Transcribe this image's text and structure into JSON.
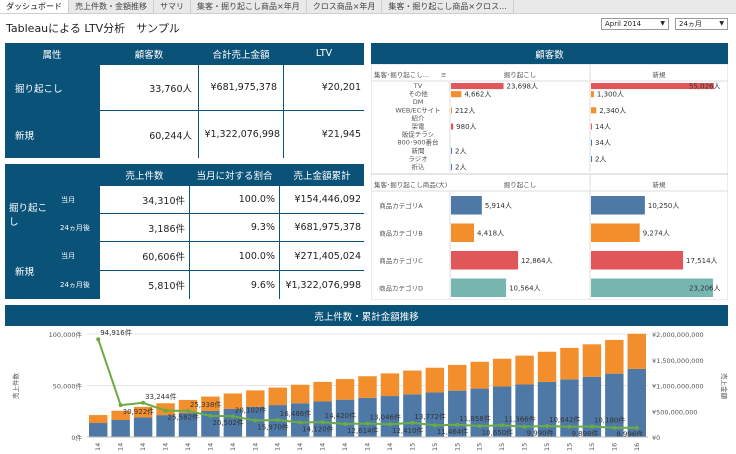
{
  "tabs": [
    "ダッシュボード",
    "売上件数・金額推移",
    "サマリ",
    "集客・掘り起こし商品×年月",
    "クロス商品×年月",
    "集客・掘り起こし商品×クロス..."
  ],
  "title": "Tableauによる LTV分析　サンプル",
  "filters": {
    "month": "April 2014",
    "period": "24ヵ月"
  },
  "table1": {
    "headers": [
      "属性",
      "顧客数",
      "合計売上金額",
      "LTV"
    ],
    "rows": [
      {
        "label": "掘り起こし",
        "customers": "33,760人",
        "sales": "¥681,975,378",
        "ltv": "¥20,201"
      },
      {
        "label": "新規",
        "customers": "60,244人",
        "sales": "¥1,322,076,998",
        "ltv": "¥21,945"
      }
    ]
  },
  "table2": {
    "headers": [
      "売上件数",
      "当月に対する割合",
      "売上金額累計"
    ],
    "groups": [
      {
        "label": "掘り起こし",
        "rows": [
          {
            "sub": "当月",
            "count": "34,310件",
            "ratio": "100.0%",
            "cum": "¥154,446,092"
          },
          {
            "sub": "24ヵ月後",
            "count": "3,186件",
            "ratio": "9.3%",
            "cum": "¥681,975,378"
          }
        ]
      },
      {
        "label": "新規",
        "rows": [
          {
            "sub": "当月",
            "count": "60,606件",
            "ratio": "100.0%",
            "cum": "¥271,405,024"
          },
          {
            "sub": "24ヵ月後",
            "count": "5,810件",
            "ratio": "9.6%",
            "cum": "¥1,322,076,998"
          }
        ]
      }
    ]
  },
  "customers_panel": {
    "title": "顧客数",
    "top": {
      "dim_label": "集客･掘り起こし...",
      "columns": [
        "掘り起こし",
        "新規"
      ],
      "rows": [
        {
          "cat": "TV",
          "a": 23698,
          "a_label": "23,698人",
          "b": 55026,
          "b_label": "55,026人"
        },
        {
          "cat": "その他",
          "a": 4662,
          "a_label": "4,662人",
          "b": 1300,
          "b_label": "1,300人"
        },
        {
          "cat": "DM",
          "a": 0,
          "a_label": "",
          "b": 0,
          "b_label": ""
        },
        {
          "cat": "WEB/ECサイト",
          "a": 212,
          "a_label": "212人",
          "b": 2340,
          "b_label": "2,340人"
        },
        {
          "cat": "紹介",
          "a": 0,
          "a_label": "",
          "b": 0,
          "b_label": ""
        },
        {
          "cat": "架電",
          "a": 980,
          "a_label": "980人",
          "b": 14,
          "b_label": "14人"
        },
        {
          "cat": "販促チラシ",
          "a": 0,
          "a_label": "",
          "b": 0,
          "b_label": ""
        },
        {
          "cat": "800･900番台",
          "a": 0,
          "a_label": "",
          "b": 34,
          "b_label": "34人"
        },
        {
          "cat": "新聞",
          "a": 2,
          "a_label": "2人",
          "b": 0,
          "b_label": ""
        },
        {
          "cat": "ラジオ",
          "a": 0,
          "a_label": "",
          "b": 2,
          "b_label": "2人"
        },
        {
          "cat": "折込",
          "a": 2,
          "a_label": "2人",
          "b": 0,
          "b_label": ""
        }
      ]
    },
    "bottom": {
      "dim_label": "集客･掘り起こし商品(大)",
      "columns": [
        "掘り起こし",
        "新規"
      ],
      "rows": [
        {
          "cat": "商品カテゴリA",
          "a": 5914,
          "a_label": "5,914人",
          "b": 10250,
          "b_label": "10,250人",
          "color": "#4e79a7"
        },
        {
          "cat": "商品カテゴリB",
          "a": 4418,
          "a_label": "4,418人",
          "b": 9274,
          "b_label": "9,274人",
          "color": "#f28e2b"
        },
        {
          "cat": "商品カテゴリC",
          "a": 12864,
          "a_label": "12,864人",
          "b": 17514,
          "b_label": "17,514人",
          "color": "#e15759"
        },
        {
          "cat": "商品カテゴリD",
          "a": 10564,
          "a_label": "10,564人",
          "b": 23206,
          "b_label": "23,206人",
          "color": "#76b7b2"
        }
      ]
    }
  },
  "trend_panel": {
    "title": "売上件数・累計金額推移"
  },
  "colors": {
    "header": "#0b5278",
    "blue": "#4e79a7",
    "orange": "#f28e2b",
    "red": "#e15759",
    "teal": "#76b7b2",
    "green": "#6aab44"
  },
  "chart_data": {
    "type": "bar",
    "ylabel": "売上件数",
    "y2label": "売上金額",
    "ylim": [
      0,
      100000
    ],
    "y2lim": [
      0,
      2000000000
    ],
    "ytick_labels": [
      "100,000件",
      "50,000件",
      "0件"
    ],
    "y2tick_labels": [
      "¥2,000,000,000",
      "¥1,500,000,000",
      "¥1,000,000,000",
      "¥500,000,000",
      "¥0"
    ],
    "series": [
      {
        "name": "売上金額累計(新規)",
        "values": [
          271405024,
          330000000,
          380000000,
          425000000,
          465000000,
          505000000,
          545000000,
          585000000,
          620000000,
          655000000,
          690000000,
          725000000,
          760000000,
          795000000,
          830000000,
          865000000,
          900000000,
          940000000,
          980000000,
          1020000000,
          1070000000,
          1120000000,
          1170000000,
          1230000000,
          1322076998
        ]
      },
      {
        "name": "売上金額累計(掘り起こし)",
        "values": [
          154446092,
          180000000,
          205000000,
          230000000,
          255000000,
          280000000,
          300000000,
          320000000,
          340000000,
          360000000,
          380000000,
          400000000,
          420000000,
          440000000,
          460000000,
          480000000,
          500000000,
          520000000,
          540000000,
          560000000,
          585000000,
          610000000,
          630000000,
          655000000,
          681975378
        ]
      },
      {
        "name": "売上件数",
        "values": [
          94916,
          30922,
          33244,
          25582,
          25338,
          20502,
          20102,
          15970,
          16486,
          14120,
          14420,
          12614,
          13046,
          12410,
          13772,
          11464,
          11858,
          10650,
          11366,
          9990,
          10642,
          9898,
          10180,
          8996,
          8996
        ]
      }
    ],
    "point_labels": [
      "94,916件",
      "30,922件",
      "33,244件",
      "25,582件",
      "25,338件",
      "20,502件",
      "20,102件",
      "15,970件",
      "16,486件",
      "14,120件",
      "14,420件",
      "12,614件",
      "13,046件",
      "12,410件",
      "13,772件",
      "11,464件",
      "11,858件",
      "10,650件",
      "11,366件",
      "9,990件",
      "10,642件",
      "9,898件",
      "10,180件",
      "8,996件",
      ""
    ],
    "xtick_labels": [
      "14",
      "14",
      "14",
      "14",
      "14",
      "14",
      "14",
      "14",
      "14",
      "14",
      "14",
      "14",
      "14",
      "14",
      "15",
      "15",
      "15",
      "15",
      "15",
      "15",
      "15",
      "15",
      "15",
      "16",
      "16"
    ]
  }
}
